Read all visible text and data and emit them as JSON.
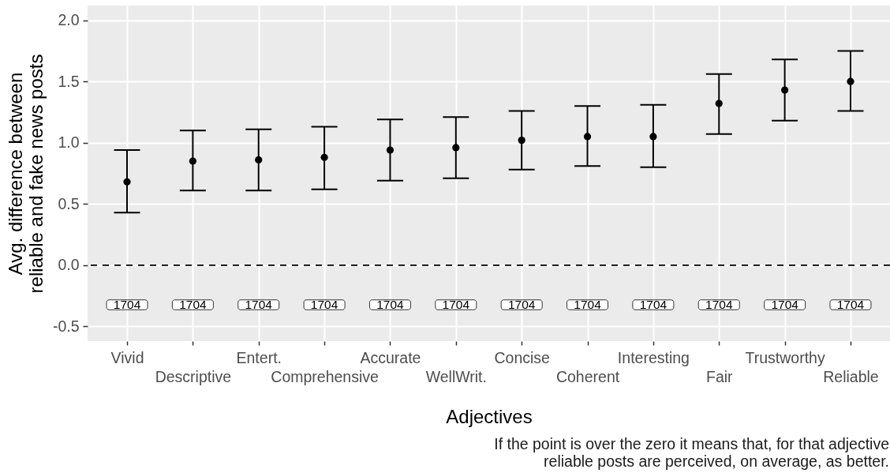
{
  "chart_data": {
    "type": "scatter",
    "xlabel": "Adjectives",
    "ylabel": "Avg. difference between\nreliable and fake news posts",
    "categories": [
      "Vivid",
      "Descriptive",
      "Entert.",
      "Comprehensive",
      "Accurate",
      "WellWrit.",
      "Concise",
      "Coherent",
      "Interesting",
      "Fair",
      "Trustworthy",
      "Reliable"
    ],
    "values": [
      0.68,
      0.85,
      0.86,
      0.88,
      0.94,
      0.96,
      1.02,
      1.05,
      1.05,
      1.32,
      1.43,
      1.5
    ],
    "errors": [
      [
        0.43,
        0.94
      ],
      [
        0.61,
        1.1
      ],
      [
        0.61,
        1.11
      ],
      [
        0.62,
        1.13
      ],
      [
        0.69,
        1.19
      ],
      [
        0.71,
        1.21
      ],
      [
        0.78,
        1.26
      ],
      [
        0.81,
        1.3
      ],
      [
        0.8,
        1.31
      ],
      [
        1.07,
        1.56
      ],
      [
        1.18,
        1.68
      ],
      [
        1.26,
        1.75
      ]
    ],
    "color": "#000000",
    "marker": "circle",
    "ylim": [
      -0.62,
      2.12
    ],
    "yticks": [
      {
        "value": -0.5,
        "label": "-0.5"
      },
      {
        "value": 0,
        "label": "0.0"
      },
      {
        "value": 0.5,
        "label": "0.5"
      },
      {
        "value": 1,
        "label": "1.0"
      },
      {
        "value": 1.5,
        "label": "1.5"
      },
      {
        "value": 2,
        "label": "2.0"
      }
    ],
    "grid": true,
    "ref_lines": [
      {
        "axis": "y",
        "value": 0,
        "line_style": "dashed",
        "color": "#000000"
      }
    ],
    "annotations": [
      "1704",
      "1704",
      "1704",
      "1704",
      "1704",
      "1704",
      "1704",
      "1704",
      "1704",
      "1704",
      "1704",
      "1704",
      "If the point is over the zero it means that, for that adjective\nreliable posts are perceived, on average, as better."
    ]
  }
}
